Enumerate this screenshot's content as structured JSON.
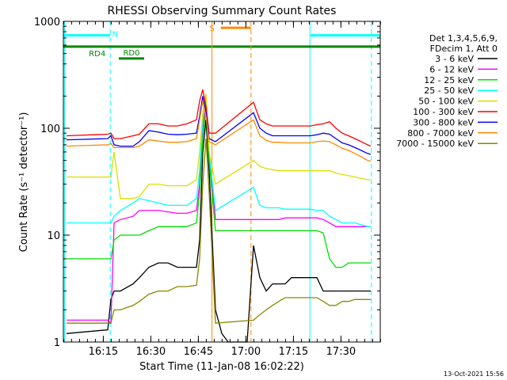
{
  "chart_data": {
    "type": "line",
    "title": "RHESSI Observing Summary Count Rates",
    "xlabel": "Start Time (11-Jan-08 16:02:22)",
    "ylabel": "Count Rate (s⁻¹ detector⁻¹)",
    "yscale": "log",
    "ylim": [
      1,
      1000
    ],
    "xlim_minutes": [
      0,
      100
    ],
    "xticks": [
      {
        "label": "16:15",
        "minutes": 12.6
      },
      {
        "label": "16:30",
        "minutes": 27.6
      },
      {
        "label": "16:45",
        "minutes": 42.6
      },
      {
        "label": "17:00",
        "minutes": 57.6
      },
      {
        "label": "17:15",
        "minutes": 72.6
      },
      {
        "label": "17:30",
        "minutes": 87.6
      }
    ],
    "yticks": [
      {
        "label": "1",
        "value": 1
      },
      {
        "label": "10",
        "value": 10
      },
      {
        "label": "100",
        "value": 100
      },
      {
        "label": "1000",
        "value": 1000
      }
    ],
    "legend_header": [
      "Det 1,3,4,5,6,9,",
      "FDecim 1, Att 0"
    ],
    "legend_position": "right",
    "grid": false,
    "series": [
      {
        "name": "3 - 6 keV",
        "color": "#000000",
        "x": [
          1,
          14,
          15,
          16,
          18,
          22,
          24,
          27,
          30,
          33,
          36,
          39,
          42,
          43,
          44,
          45,
          46,
          48,
          50,
          52,
          54,
          56,
          58,
          60,
          62,
          64,
          66,
          68,
          70,
          72,
          74,
          76,
          78,
          80,
          82,
          84,
          86,
          88,
          90,
          92,
          94,
          96,
          97
        ],
        "y": [
          1.2,
          1.3,
          2.5,
          3,
          3,
          3.5,
          4,
          5,
          5.5,
          5.5,
          5,
          5,
          5,
          9,
          60,
          120,
          40,
          2,
          1.2,
          1,
          1,
          1,
          1,
          8,
          4,
          3,
          3.5,
          3.5,
          3.5,
          4,
          4,
          4,
          4,
          4,
          3,
          3,
          3,
          3,
          3,
          3,
          3,
          3,
          3
        ]
      },
      {
        "name": "6 - 12 keV",
        "color": "#ff00ff",
        "x": [
          1,
          14,
          15,
          16,
          18,
          22,
          24,
          27,
          30,
          33,
          36,
          39,
          42,
          43,
          44,
          45,
          46,
          48,
          60,
          62,
          64,
          66,
          68,
          70,
          72,
          74,
          76,
          78,
          80,
          82,
          84,
          86,
          88,
          90,
          92,
          94,
          96,
          97
        ],
        "y": [
          1.6,
          1.6,
          1.5,
          13,
          14,
          15,
          17,
          17,
          17,
          16.5,
          16,
          16,
          17,
          30,
          100,
          180,
          60,
          14,
          14,
          14,
          14,
          14,
          14,
          14.5,
          14.5,
          14.5,
          14.5,
          14.5,
          14.5,
          14,
          13,
          12,
          12,
          12,
          12,
          12,
          12,
          12
        ]
      },
      {
        "name": "12 - 25 keV",
        "color": "#00dd00",
        "x": [
          1,
          14,
          15,
          16,
          18,
          22,
          24,
          27,
          30,
          33,
          36,
          39,
          42,
          43,
          44,
          45,
          46,
          48,
          60,
          62,
          64,
          66,
          68,
          70,
          72,
          74,
          76,
          78,
          80,
          82,
          84,
          86,
          88,
          90,
          92,
          94,
          96,
          97
        ],
        "y": [
          6,
          6,
          6,
          9,
          10,
          10,
          10,
          11,
          12,
          12,
          12,
          12,
          13,
          25,
          80,
          150,
          50,
          11,
          11,
          11,
          11,
          11,
          11,
          11,
          11,
          11,
          11,
          11,
          11,
          10.5,
          6,
          5,
          5,
          5.5,
          5.5,
          5.5,
          5.5,
          5.5
        ]
      },
      {
        "name": "25 - 50 keV",
        "color": "#00ffff",
        "x": [
          1,
          14,
          15,
          16,
          18,
          22,
          24,
          27,
          30,
          33,
          36,
          39,
          42,
          43,
          44,
          45,
          46,
          48,
          60,
          62,
          64,
          66,
          68,
          70,
          72,
          74,
          76,
          78,
          80,
          82,
          84,
          86,
          88,
          90,
          92,
          94,
          96,
          97
        ],
        "y": [
          13,
          13,
          13,
          15,
          17,
          20,
          22,
          21,
          20,
          19,
          19,
          19,
          22,
          40,
          120,
          200,
          60,
          17,
          28,
          19,
          18,
          18,
          18,
          17.5,
          17.5,
          17.5,
          17.5,
          17.5,
          17,
          17,
          15,
          14,
          13,
          13,
          13,
          12.5,
          12,
          12
        ]
      },
      {
        "name": "50 - 100 keV",
        "color": "#dddd00",
        "x": [
          1,
          14,
          15,
          16,
          18,
          22,
          24,
          27,
          30,
          33,
          36,
          39,
          42,
          43,
          44,
          45,
          46,
          48,
          60,
          62,
          64,
          66,
          68,
          70,
          72,
          74,
          76,
          78,
          80,
          82,
          84,
          86,
          88,
          90,
          92,
          94,
          96,
          97
        ],
        "y": [
          35,
          35,
          35,
          60,
          22,
          22,
          23,
          30,
          30,
          29,
          29,
          29,
          33,
          60,
          140,
          210,
          60,
          30,
          50,
          44,
          42,
          41,
          40,
          40,
          40,
          40,
          40,
          40,
          40,
          40,
          40,
          38,
          37,
          36,
          35,
          34,
          33,
          33
        ]
      },
      {
        "name": "100 - 300 keV",
        "color": "#ff0000",
        "x": [
          1,
          14,
          15,
          16,
          18,
          22,
          24,
          27,
          30,
          33,
          36,
          39,
          42,
          43,
          44,
          45,
          46,
          48,
          60,
          62,
          64,
          66,
          68,
          70,
          72,
          74,
          76,
          78,
          80,
          82,
          84,
          86,
          88,
          90,
          92,
          94,
          96,
          97
        ],
        "y": [
          85,
          88,
          90,
          80,
          80,
          85,
          88,
          110,
          110,
          105,
          105,
          110,
          120,
          180,
          230,
          160,
          90,
          90,
          175,
          120,
          110,
          105,
          105,
          105,
          105,
          105,
          105,
          105,
          108,
          110,
          115,
          100,
          90,
          85,
          80,
          75,
          70,
          68
        ]
      },
      {
        "name": "300 - 800 keV",
        "color": "#0000ff",
        "x": [
          1,
          14,
          15,
          16,
          18,
          22,
          24,
          27,
          30,
          33,
          36,
          39,
          42,
          43,
          44,
          45,
          46,
          48,
          60,
          62,
          64,
          66,
          68,
          70,
          72,
          74,
          76,
          78,
          80,
          82,
          84,
          86,
          88,
          90,
          92,
          94,
          96,
          97
        ],
        "y": [
          78,
          80,
          85,
          70,
          68,
          68,
          75,
          95,
          92,
          88,
          87,
          88,
          90,
          130,
          200,
          140,
          80,
          75,
          140,
          100,
          90,
          85,
          85,
          85,
          85,
          85,
          85,
          85,
          87,
          90,
          88,
          80,
          73,
          70,
          66,
          62,
          58,
          57
        ]
      },
      {
        "name": "800 - 7000 keV",
        "color": "#ff8800",
        "x": [
          1,
          14,
          15,
          16,
          18,
          22,
          24,
          27,
          30,
          33,
          36,
          39,
          42,
          43,
          44,
          45,
          46,
          48,
          60,
          62,
          64,
          66,
          68,
          70,
          72,
          74,
          76,
          78,
          80,
          82,
          84,
          86,
          88,
          90,
          92,
          94,
          96,
          97
        ],
        "y": [
          68,
          70,
          72,
          66,
          66,
          66,
          68,
          78,
          76,
          74,
          74,
          75,
          80,
          120,
          180,
          130,
          75,
          70,
          120,
          85,
          77,
          74,
          74,
          73,
          73,
          73,
          73,
          73,
          75,
          76,
          75,
          70,
          65,
          62,
          58,
          54,
          50,
          49
        ]
      },
      {
        "name": "7000 - 15000 keV",
        "color": "#888800",
        "x": [
          1,
          14,
          15,
          16,
          18,
          22,
          24,
          27,
          30,
          33,
          36,
          39,
          42,
          43,
          44,
          45,
          46,
          48,
          60,
          62,
          64,
          66,
          68,
          70,
          72,
          74,
          76,
          78,
          80,
          82,
          84,
          86,
          88,
          90,
          92,
          94,
          96,
          97
        ],
        "y": [
          1.5,
          1.5,
          1.5,
          2,
          2,
          2.2,
          2.4,
          2.8,
          3,
          3,
          3.3,
          3.3,
          3.4,
          6,
          30,
          80,
          25,
          1.5,
          1.6,
          1.8,
          2,
          2.2,
          2.4,
          2.6,
          2.6,
          2.6,
          2.6,
          2.6,
          2.6,
          2.4,
          2.2,
          2.2,
          2.4,
          2.4,
          2.5,
          2.5,
          2.5,
          2.5
        ]
      }
    ],
    "annotations": [
      {
        "label": "N",
        "type": "bar",
        "color": "#00ffff",
        "start": 0,
        "end": 14.8,
        "value": 740
      },
      {
        "label": "",
        "type": "bar",
        "color": "#00ffff",
        "start": 78,
        "end": 100,
        "value": 740
      },
      {
        "label": "",
        "type": "vline",
        "color": "#00ffff",
        "style": "dashed",
        "at": 14.8
      },
      {
        "label": "",
        "type": "vline",
        "color": "#00ffff",
        "style": "solid",
        "at": 77.8
      },
      {
        "label": "",
        "type": "vline",
        "color": "#00ffff",
        "style": "dashed",
        "at": 97.2
      },
      {
        "label": "",
        "type": "vline",
        "color": "#00ffff",
        "style": "solid",
        "at": 0.4
      },
      {
        "label": "RD4",
        "type": "bar",
        "color": "#008800",
        "start": 0,
        "end": 100,
        "value": 580
      },
      {
        "label": "RD0",
        "type": "bar",
        "color": "#008800",
        "start": 17.5,
        "end": 25.5,
        "value": 450
      },
      {
        "label": "S",
        "type": "bar",
        "color": "#ff8800",
        "start": 49.7,
        "end": 59.2,
        "value": 870
      },
      {
        "label": "",
        "type": "vline",
        "color": "#ff8800",
        "style": "solid",
        "at": 46.9
      },
      {
        "label": "",
        "type": "vline",
        "color": "#ff8800",
        "style": "dashed",
        "at": 59.2
      }
    ]
  },
  "footer_date": "13-Oct-2021 15:56"
}
